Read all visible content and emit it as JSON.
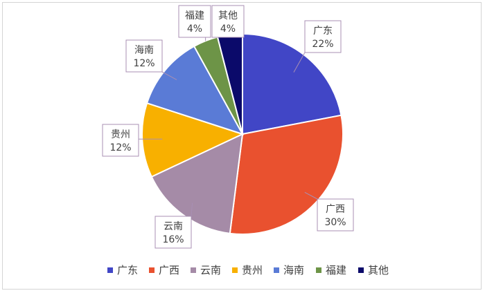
{
  "chart_data": {
    "type": "pie",
    "title": "",
    "labels": [
      "广东",
      "广西",
      "云南",
      "贵州",
      "海南",
      "福建",
      "其他"
    ],
    "values": [
      22,
      30,
      16,
      12,
      12,
      4,
      4
    ],
    "value_labels": [
      "22%",
      "30%",
      "16%",
      "12%",
      "12%",
      "4%",
      "4%"
    ],
    "colors": [
      "#4146c6",
      "#e9512f",
      "#a58ba7",
      "#f8b000",
      "#5a7bd6",
      "#6d9447",
      "#0b0a6a"
    ],
    "start_angle": "12 o'clock",
    "direction": "clockwise",
    "legend_position": "bottom"
  }
}
